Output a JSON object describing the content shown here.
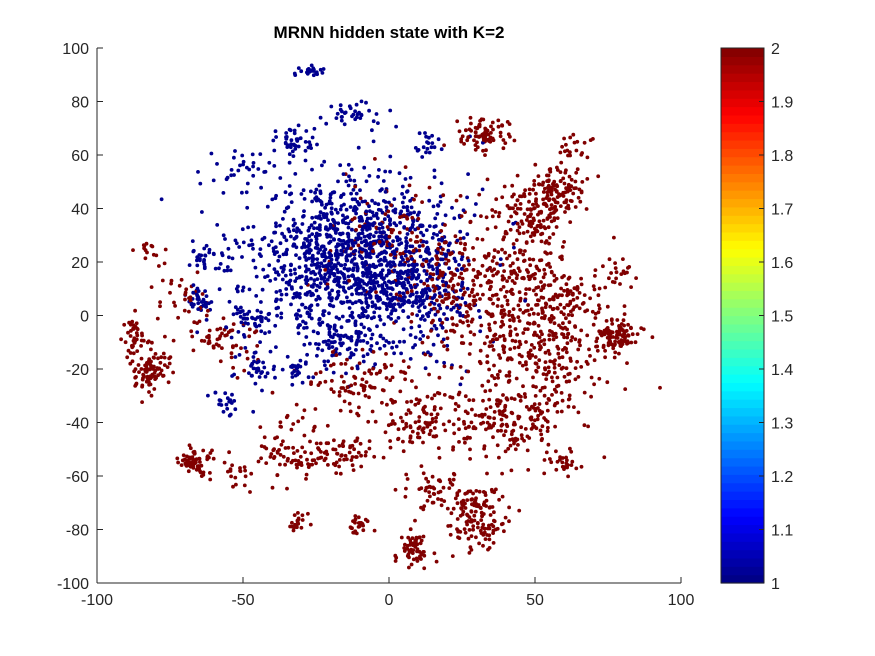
{
  "chart_data": {
    "type": "scatter",
    "title": "MRNN hidden state with K=2",
    "xlabel": "",
    "ylabel": "",
    "xlim": [
      -100,
      100
    ],
    "ylim": [
      -100,
      100
    ],
    "x_ticks": [
      -100,
      -50,
      0,
      50,
      100
    ],
    "y_ticks": [
      -100,
      -80,
      -60,
      -40,
      -20,
      0,
      20,
      40,
      60,
      80,
      100
    ],
    "x_tick_labels": [
      "-100",
      "-50",
      "0",
      "50",
      "100"
    ],
    "y_tick_labels": [
      "-100",
      "-80",
      "-60",
      "-40",
      "-20",
      "0",
      "20",
      "40",
      "60",
      "80",
      "100"
    ],
    "grid": false,
    "colormap": "jet",
    "colorbar": {
      "range": [
        1,
        2
      ],
      "ticks": [
        1,
        1.1,
        1.2,
        1.3,
        1.4,
        1.5,
        1.6,
        1.7,
        1.8,
        1.9,
        2
      ],
      "tick_labels": [
        "1",
        "1.1",
        "1.2",
        "1.3",
        "1.4",
        "1.5",
        "1.6",
        "1.7",
        "1.8",
        "1.9",
        "2"
      ]
    },
    "series": [
      {
        "value": 1,
        "color": "#00008f",
        "clusters": [
          {
            "cx": -10,
            "cy": 20,
            "sx": 17,
            "sy": 16,
            "n": 1400
          },
          {
            "cx": -12,
            "cy": 75,
            "sx": 5,
            "sy": 3,
            "n": 35
          },
          {
            "cx": -27,
            "cy": 91,
            "sx": 2.5,
            "sy": 1.2,
            "n": 22
          },
          {
            "cx": -32,
            "cy": 65,
            "sx": 4,
            "sy": 3,
            "n": 40
          },
          {
            "cx": -50,
            "cy": 55,
            "sx": 5,
            "sy": 5,
            "n": 30
          },
          {
            "cx": -62,
            "cy": 22,
            "sx": 5,
            "sy": 4,
            "n": 40
          },
          {
            "cx": -65,
            "cy": 6,
            "sx": 2.5,
            "sy": 3,
            "n": 35
          },
          {
            "cx": -48,
            "cy": -2,
            "sx": 4,
            "sy": 3,
            "n": 45
          },
          {
            "cx": -45,
            "cy": -20,
            "sx": 4,
            "sy": 4,
            "n": 35
          },
          {
            "cx": -32,
            "cy": -20,
            "sx": 3,
            "sy": 3,
            "n": 25
          },
          {
            "cx": -55,
            "cy": -32,
            "sx": 3,
            "sy": 3,
            "n": 20
          },
          {
            "cx": -15,
            "cy": -10,
            "sx": 5,
            "sy": 4,
            "n": 60
          },
          {
            "cx": 10,
            "cy": 10,
            "sx": 6,
            "sy": 6,
            "n": 70
          },
          {
            "cx": 12,
            "cy": 65,
            "sx": 3,
            "sy": 3,
            "n": 20
          }
        ]
      },
      {
        "value": 2,
        "color": "#800000",
        "clusters": [
          {
            "cx": 33,
            "cy": 68,
            "sx": 4,
            "sy": 3,
            "n": 80
          },
          {
            "cx": 55,
            "cy": 48,
            "sx": 5,
            "sy": 4,
            "n": 70
          },
          {
            "cx": 50,
            "cy": 37,
            "sx": 6,
            "sy": 5,
            "n": 120
          },
          {
            "cx": 78,
            "cy": -8,
            "sx": 4,
            "sy": 3,
            "n": 100
          },
          {
            "cx": -87,
            "cy": -7,
            "sx": 2,
            "sy": 3,
            "n": 35
          },
          {
            "cx": -82,
            "cy": -20,
            "sx": 4,
            "sy": 4,
            "n": 90
          },
          {
            "cx": -66,
            "cy": -55,
            "sx": 3,
            "sy": 2.5,
            "n": 60
          },
          {
            "cx": 30,
            "cy": -75,
            "sx": 5,
            "sy": 6,
            "n": 140
          },
          {
            "cx": 8,
            "cy": -88,
            "sx": 3,
            "sy": 3,
            "n": 60
          },
          {
            "cx": 10,
            "cy": -40,
            "sx": 6,
            "sy": 5,
            "n": 80
          },
          {
            "cx": 40,
            "cy": -38,
            "sx": 10,
            "sy": 8,
            "n": 200
          },
          {
            "cx": 45,
            "cy": -5,
            "sx": 14,
            "sy": 12,
            "n": 300
          },
          {
            "cx": 25,
            "cy": 15,
            "sx": 10,
            "sy": 12,
            "n": 200
          },
          {
            "cx": -15,
            "cy": -50,
            "sx": 6,
            "sy": 4,
            "n": 60
          },
          {
            "cx": -12,
            "cy": -78,
            "sx": 2.5,
            "sy": 2,
            "n": 25
          },
          {
            "cx": -31,
            "cy": -77,
            "sx": 2,
            "sy": 2,
            "n": 20
          },
          {
            "cx": -35,
            "cy": -50,
            "sx": 5,
            "sy": 6,
            "n": 60
          },
          {
            "cx": -52,
            "cy": -60,
            "sx": 3,
            "sy": 3,
            "n": 20
          },
          {
            "cx": -28,
            "cy": -55,
            "sx": 3,
            "sy": 3,
            "n": 20
          },
          {
            "cx": 15,
            "cy": -65,
            "sx": 6,
            "sy": 4,
            "n": 50
          },
          {
            "cx": 60,
            "cy": -55,
            "sx": 3,
            "sy": 2.5,
            "n": 25
          },
          {
            "cx": 60,
            "cy": -20,
            "sx": 8,
            "sy": 8,
            "n": 90
          },
          {
            "cx": 62,
            "cy": 8,
            "sx": 6,
            "sy": 6,
            "n": 60
          },
          {
            "cx": 45,
            "cy": 20,
            "sx": 6,
            "sy": 5,
            "n": 60
          },
          {
            "cx": 63,
            "cy": 63,
            "sx": 3,
            "sy": 3,
            "n": 20
          },
          {
            "cx": -70,
            "cy": 5,
            "sx": 6,
            "sy": 8,
            "n": 40
          },
          {
            "cx": -55,
            "cy": -10,
            "sx": 6,
            "sy": 6,
            "n": 50
          },
          {
            "cx": -83,
            "cy": 25,
            "sx": 1.5,
            "sy": 1.5,
            "n": 12
          },
          {
            "cx": -10,
            "cy": -25,
            "sx": 10,
            "sy": 6,
            "n": 100
          },
          {
            "cx": 0,
            "cy": 30,
            "sx": 12,
            "sy": 12,
            "n": 90
          },
          {
            "cx": 60,
            "cy": 45,
            "sx": 4,
            "sy": 4,
            "n": 40
          },
          {
            "cx": 78,
            "cy": 15,
            "sx": 3,
            "sy": 3,
            "n": 20
          }
        ]
      }
    ]
  }
}
